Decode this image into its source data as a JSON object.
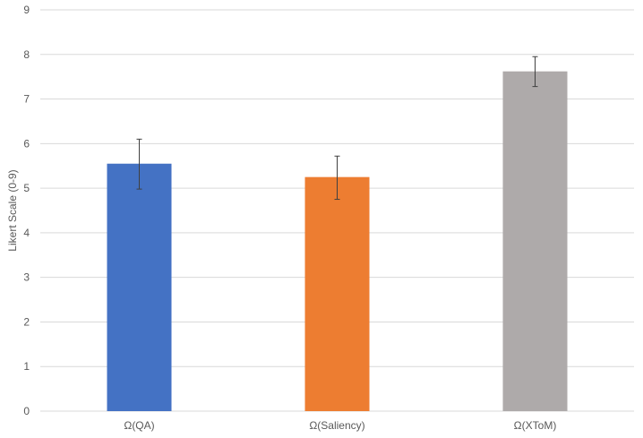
{
  "chart_data": {
    "type": "bar",
    "title": "",
    "xlabel": "",
    "ylabel": "Likert Scale (0-9)",
    "ylim": [
      0,
      9
    ],
    "yticks": [
      "0",
      "1",
      "2",
      "3",
      "4",
      "5",
      "6",
      "7",
      "8",
      "9"
    ],
    "categories": [
      "Ω(QA)",
      "Ω(Saliency)",
      "Ω(XToM)"
    ],
    "values": [
      5.55,
      5.25,
      7.62
    ],
    "error_low": [
      4.98,
      4.75,
      7.28
    ],
    "error_high": [
      6.1,
      5.72,
      7.95
    ],
    "colors": [
      "#4472c4",
      "#ed7d31",
      "#aeaaaa"
    ],
    "grid": true,
    "legend": "none"
  }
}
